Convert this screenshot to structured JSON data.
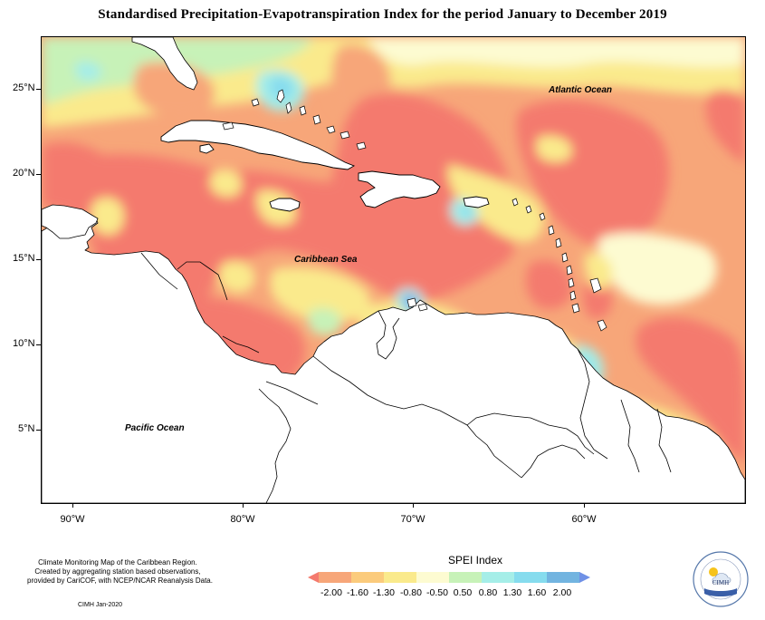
{
  "title": "Standardised Precipitation-Evapotranspiration Index for the period January to December 2019",
  "map": {
    "lat_labels": [
      "25°N",
      "20°N",
      "15°N",
      "10°N",
      "5°N"
    ],
    "lon_labels": [
      "90°W",
      "80°W",
      "70°W",
      "60°W"
    ],
    "oceans": {
      "atlantic": "Atlantic Ocean",
      "caribbean": "Caribbean Sea",
      "pacific": "Pacific Ocean"
    }
  },
  "credit": {
    "lines": [
      "Climate Monitoring Map of the Caribbean Region.",
      "Created by aggregating station based observations,",
      "provided by CariCOF, with NCEP/NCAR Reanalysis Data."
    ],
    "stamp": "CIMH  Jan-2020"
  },
  "legend": {
    "title": "SPEI Index",
    "labels": [
      "-2.00",
      "-1.60",
      "-1.30",
      "-0.80",
      "-0.50",
      "0.50",
      "0.80",
      "1.30",
      "1.60",
      "2.00"
    ],
    "colors": [
      "#f47a6e",
      "#f7a679",
      "#fbcb7c",
      "#faea8c",
      "#fdfbd1",
      "#c7f2b8",
      "#a5eee8",
      "#86dcee",
      "#72b4e0",
      "#6f91e6"
    ]
  },
  "logo": {
    "text": "CIMH"
  }
}
